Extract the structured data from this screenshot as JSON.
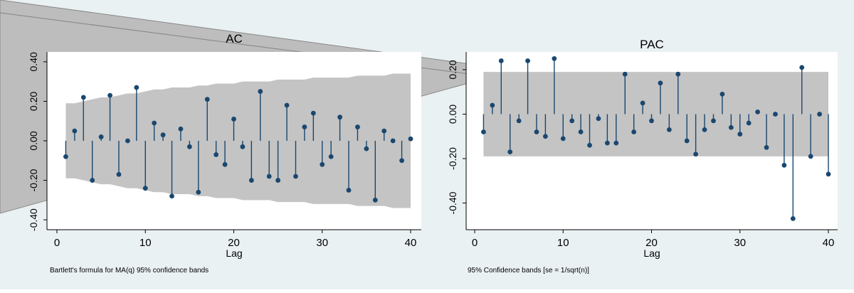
{
  "colors": {
    "background": "#eaf1f3",
    "plot_bg": "#ffffff",
    "band": "#c4c4c4",
    "stem": "#1a476f",
    "marker": "#1a476f",
    "axis": "#000000"
  },
  "chart_data": [
    {
      "type": "bar",
      "title": "AC",
      "xlabel": "Lag",
      "ylabel": "",
      "note": "Bartlett's formula for MA(q) 95% confidence bands",
      "xlim": [
        0,
        40
      ],
      "ylim": [
        -0.45,
        0.45
      ],
      "x_ticks": [
        0,
        10,
        20,
        30,
        40
      ],
      "y_ticks": [
        -0.4,
        -0.2,
        0,
        0.2,
        0.4
      ],
      "y_tick_labels": [
        "-0.40",
        "-0.20",
        "0.00",
        "0.20",
        "0.40"
      ],
      "x": [
        1,
        2,
        3,
        4,
        5,
        6,
        7,
        8,
        9,
        10,
        11,
        12,
        13,
        14,
        15,
        16,
        17,
        18,
        19,
        20,
        21,
        22,
        23,
        24,
        25,
        26,
        27,
        28,
        29,
        30,
        31,
        32,
        33,
        34,
        35,
        36,
        37,
        38,
        39,
        40
      ],
      "values": [
        -0.08,
        0.05,
        0.22,
        -0.2,
        0.02,
        0.23,
        -0.17,
        0.0,
        0.27,
        -0.24,
        0.09,
        0.03,
        -0.28,
        0.06,
        -0.03,
        -0.26,
        0.21,
        -0.07,
        -0.12,
        0.11,
        -0.03,
        -0.2,
        0.25,
        -0.18,
        -0.2,
        0.18,
        -0.18,
        0.07,
        0.14,
        -0.12,
        -0.08,
        0.12,
        -0.25,
        0.07,
        -0.04,
        -0.3,
        0.05,
        0.0,
        -0.1,
        0.01
      ],
      "band_upper": [
        0.19,
        0.19,
        0.2,
        0.21,
        0.22,
        0.22,
        0.23,
        0.24,
        0.24,
        0.25,
        0.26,
        0.26,
        0.27,
        0.27,
        0.27,
        0.28,
        0.28,
        0.29,
        0.29,
        0.29,
        0.3,
        0.3,
        0.3,
        0.3,
        0.31,
        0.31,
        0.31,
        0.31,
        0.32,
        0.32,
        0.32,
        0.32,
        0.32,
        0.33,
        0.33,
        0.33,
        0.33,
        0.34,
        0.34,
        0.34
      ],
      "grid": false
    },
    {
      "type": "bar",
      "title": "PAC",
      "xlabel": "Lag",
      "ylabel": "",
      "note": "95% Confidence bands [se = 1/sqrt(n)]",
      "xlim": [
        0,
        40
      ],
      "ylim": [
        -0.52,
        0.28
      ],
      "x_ticks": [
        0,
        10,
        20,
        30,
        40
      ],
      "y_ticks": [
        -0.4,
        -0.2,
        0,
        0.2
      ],
      "y_tick_labels": [
        "-0.40",
        "-0.20",
        "0.00",
        "0.20"
      ],
      "x": [
        1,
        2,
        3,
        4,
        5,
        6,
        7,
        8,
        9,
        10,
        11,
        12,
        13,
        14,
        15,
        16,
        17,
        18,
        19,
        20,
        21,
        22,
        23,
        24,
        25,
        26,
        27,
        28,
        29,
        30,
        31,
        32,
        33,
        34,
        35,
        36,
        37,
        38,
        39,
        40
      ],
      "values": [
        -0.08,
        0.04,
        0.24,
        -0.17,
        -0.03,
        0.24,
        -0.08,
        -0.1,
        0.25,
        -0.11,
        -0.03,
        -0.08,
        -0.14,
        -0.02,
        -0.13,
        -0.13,
        0.18,
        -0.08,
        0.05,
        -0.03,
        0.14,
        -0.07,
        0.18,
        -0.12,
        -0.18,
        -0.07,
        -0.03,
        0.09,
        -0.06,
        -0.09,
        -0.04,
        0.01,
        -0.15,
        0.0,
        -0.23,
        -0.47,
        0.21,
        -0.19,
        0.0,
        -0.27
      ],
      "band_upper": [
        0.19,
        0.19,
        0.19,
        0.19,
        0.19,
        0.19,
        0.19,
        0.19,
        0.19,
        0.19,
        0.19,
        0.19,
        0.19,
        0.19,
        0.19,
        0.19,
        0.19,
        0.19,
        0.19,
        0.19,
        0.19,
        0.19,
        0.19,
        0.19,
        0.19,
        0.19,
        0.19,
        0.19,
        0.19,
        0.19,
        0.19,
        0.19,
        0.19,
        0.19,
        0.19,
        0.19,
        0.19,
        0.19,
        0.19,
        0.19
      ],
      "grid": false
    }
  ]
}
